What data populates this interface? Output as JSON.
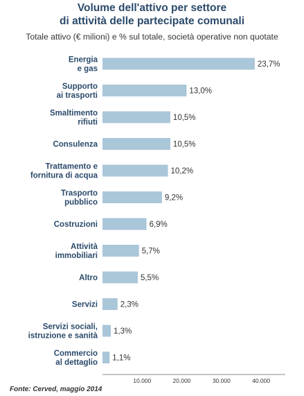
{
  "title_line1": "Volume dell'attivo per settore",
  "title_line2": "di attività delle partecipate comunali",
  "subtitle": "Totale attivo (€ milioni) e % sul totale, società operative non quotate",
  "source": "Fonte: Cerved, maggio 2014",
  "colors": {
    "bar": "#aac6d9",
    "category_text": "#2b4a6b",
    "value_text": "#333333",
    "axis": "#666666"
  },
  "chart_data": {
    "type": "bar",
    "orientation": "horizontal",
    "categories": [
      [
        "Energia",
        "e gas"
      ],
      [
        "Supporto",
        "ai trasporti"
      ],
      [
        "Smaltimento",
        "rifiuti"
      ],
      [
        "Consulenza"
      ],
      [
        "Trattamento e",
        "fornitura di acqua"
      ],
      [
        "Trasporto",
        "pubblico"
      ],
      [
        "Costruzioni"
      ],
      [
        "Attività",
        "immobiliari"
      ],
      [
        "Altro"
      ],
      [
        "Servizi"
      ],
      [
        "Servizi sociali,",
        "istruzione e sanità"
      ],
      [
        "Commercio",
        "al dettaglio"
      ]
    ],
    "values": [
      38400,
      21200,
      17100,
      17100,
      16500,
      15000,
      11100,
      9200,
      8900,
      3800,
      2100,
      1800
    ],
    "labels": [
      "23,7%",
      "13,0%",
      "10,5%",
      "10,5%",
      "10,2%",
      "9,2%",
      "6,9%",
      "5,7%",
      "5,5%",
      "2,3%",
      "1,3%",
      "1,1%"
    ],
    "xticks": [
      10000,
      20000,
      30000,
      40000
    ],
    "xtick_labels": [
      "10.000",
      "20.000",
      "30.000",
      "40.000"
    ],
    "xlim": [
      0,
      44000
    ],
    "grid": false
  }
}
